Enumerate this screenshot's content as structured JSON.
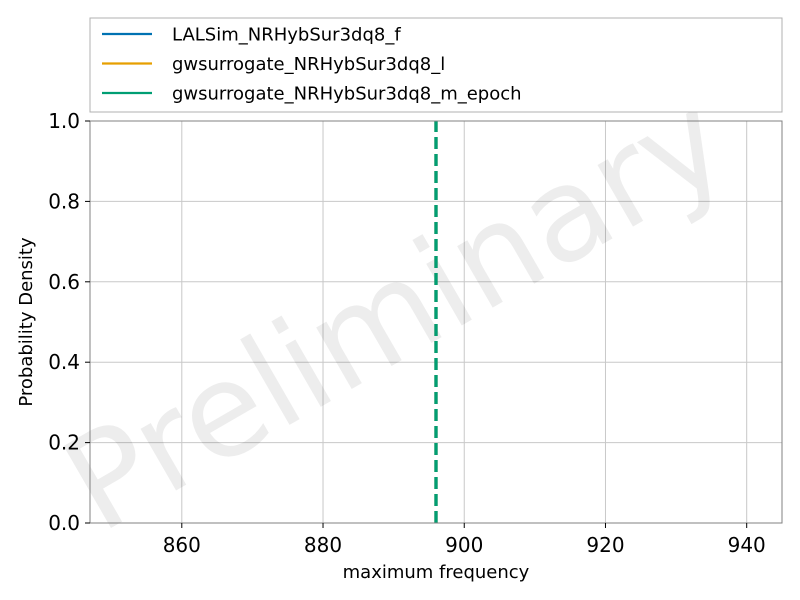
{
  "chart_data": {
    "type": "line",
    "xlabel": "maximum frequency",
    "ylabel": "Probability Density",
    "xlim": [
      847,
      945
    ],
    "ylim": [
      0,
      1.0
    ],
    "xticks": [
      860,
      880,
      900,
      920,
      940
    ],
    "yticks": [
      0.0,
      0.2,
      0.4,
      0.6,
      0.8,
      1.0
    ],
    "xtick_labels": [
      "860",
      "880",
      "900",
      "920",
      "940"
    ],
    "ytick_labels": [
      "0.0",
      "0.2",
      "0.4",
      "0.6",
      "0.8",
      "1.0"
    ],
    "grid": true,
    "legend_position": "top, above plot",
    "watermark": "Preliminary",
    "series": [
      {
        "name": "LALSim_NRHybSur3dq8_f",
        "color": "#0072b2",
        "style": "dashed vertical line",
        "x": 896
      },
      {
        "name": "gwsurrogate_NRHybSur3dq8_l",
        "color": "#e69f00",
        "style": "dashed vertical line",
        "x": 896
      },
      {
        "name": "gwsurrogate_NRHybSur3dq8_m_epoch",
        "color": "#009e73",
        "style": "dashed vertical line",
        "x": 896
      }
    ]
  }
}
